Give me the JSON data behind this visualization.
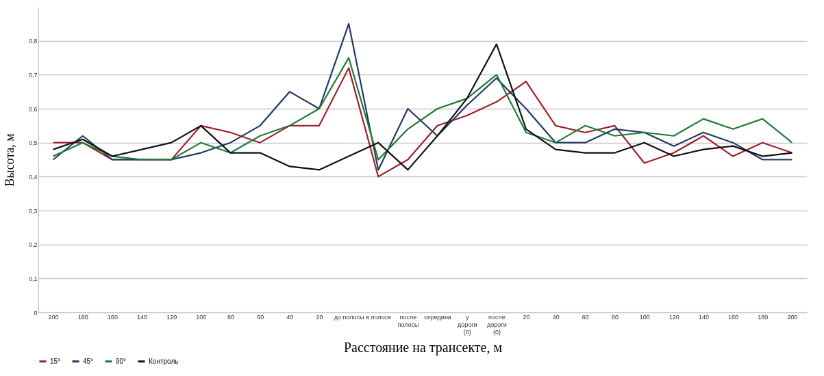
{
  "chart_data": {
    "type": "line",
    "xlabel": "Расстояние на трансекте, м",
    "ylabel": "Высота, м",
    "categories": [
      "200",
      "180",
      "160",
      "140",
      "120",
      "100",
      "80",
      "60",
      "40",
      "20",
      "до полосы",
      "в полосе",
      "после полосы",
      "середина",
      "у дороги (0)",
      "после дороги (0)",
      "20",
      "40",
      "60",
      "80",
      "100",
      "120",
      "140",
      "160",
      "180",
      "200"
    ],
    "series": [
      {
        "name": "15°",
        "color": "#a0202a",
        "values": [
          0.5,
          0.5,
          0.45,
          0.45,
          0.45,
          0.55,
          0.53,
          0.5,
          0.55,
          0.55,
          0.72,
          0.4,
          0.45,
          0.55,
          0.58,
          0.62,
          0.68,
          0.55,
          0.53,
          0.55,
          0.44,
          0.47,
          0.52,
          0.46,
          0.5,
          0.47
        ]
      },
      {
        "name": "45°",
        "color": "#1f3864",
        "values": [
          0.45,
          0.52,
          0.45,
          0.45,
          0.45,
          0.47,
          0.5,
          0.55,
          0.65,
          0.6,
          0.85,
          0.42,
          0.6,
          0.52,
          0.61,
          0.69,
          0.6,
          0.5,
          0.5,
          0.54,
          0.53,
          0.49,
          0.53,
          0.5,
          0.45,
          0.45
        ]
      },
      {
        "name": "90°",
        "color": "#1e7a35",
        "values": [
          0.46,
          0.5,
          0.46,
          0.45,
          0.45,
          0.5,
          0.47,
          0.52,
          0.55,
          0.6,
          0.75,
          0.45,
          0.54,
          0.6,
          0.63,
          0.7,
          0.53,
          0.5,
          0.55,
          0.52,
          0.53,
          0.52,
          0.57,
          0.54,
          0.57,
          0.5
        ]
      },
      {
        "name": "Контроль",
        "color": "#111111",
        "values": [
          0.48,
          0.51,
          0.46,
          0.48,
          0.5,
          0.55,
          0.47,
          0.47,
          0.43,
          0.42,
          0.46,
          0.5,
          0.42,
          0.52,
          0.63,
          0.79,
          0.54,
          0.48,
          0.47,
          0.47,
          0.5,
          0.46,
          0.48,
          0.49,
          0.46,
          0.47
        ]
      }
    ],
    "ylim": [
      0,
      0.9
    ],
    "yticks": [
      {
        "value": 0,
        "label": "0"
      },
      {
        "value": 0.1,
        "label": "0,1"
      },
      {
        "value": 0.2,
        "label": "0,2"
      },
      {
        "value": 0.3,
        "label": "0,3"
      },
      {
        "value": 0.4,
        "label": "0,4"
      },
      {
        "value": 0.5,
        "label": "0,5"
      },
      {
        "value": 0.6,
        "label": "0,6"
      },
      {
        "value": 0.7,
        "label": "0,7"
      },
      {
        "value": 0.8,
        "label": "0,8"
      }
    ],
    "grid": "y",
    "legend": "bottom",
    "marker": "none",
    "line_style": "solid"
  }
}
